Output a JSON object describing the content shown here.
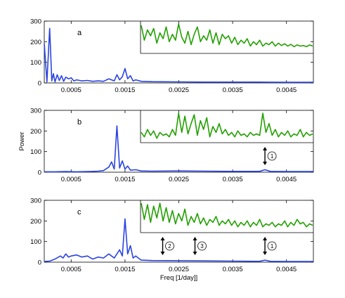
{
  "chart_data": [
    {
      "type": "line",
      "panel_label": "a",
      "xlim": [
        0.0,
        0.005
      ],
      "ylim": [
        0,
        300
      ],
      "xticks": [
        "0.0005",
        "0.0015",
        "0.0025",
        "0.0035",
        "0.0045"
      ],
      "yticks": [
        "0",
        "100",
        "200",
        "300"
      ],
      "xlabel": "",
      "ylabel": "",
      "main_color": "#2a44e0",
      "inset_color": "#22a000",
      "series": [
        {
          "color": "#2a44e0",
          "x": [
            0.0,
            5e-05,
            0.0001,
            0.00014,
            0.00017,
            0.0002,
            0.00024,
            0.00028,
            0.00032,
            0.00036,
            0.0004,
            0.00045,
            0.0005,
            0.00055,
            0.0006,
            0.0007,
            0.0008,
            0.0009,
            0.001,
            0.0011,
            0.0012,
            0.0013,
            0.00135,
            0.0014,
            0.00145,
            0.0015,
            0.00155,
            0.0016,
            0.00165,
            0.0017,
            0.0018,
            0.002,
            0.0025,
            0.003,
            0.0035,
            0.004,
            0.0045,
            0.005
          ],
          "y": [
            190,
            5,
            265,
            10,
            45,
            5,
            40,
            12,
            35,
            8,
            28,
            20,
            25,
            10,
            15,
            10,
            12,
            8,
            10,
            8,
            20,
            10,
            40,
            15,
            30,
            70,
            20,
            35,
            10,
            15,
            8,
            6,
            5,
            4,
            4,
            4,
            3,
            3
          ]
        }
      ],
      "inset": {
        "xlim": [
          0.0017,
          0.005
        ],
        "y": [
          90,
          40,
          75,
          55,
          80,
          30,
          65,
          45,
          85,
          35,
          60,
          40,
          95,
          50,
          30,
          70,
          25,
          60,
          85,
          35,
          55,
          40,
          75,
          30,
          65,
          25,
          60,
          45,
          55,
          30,
          50,
          25,
          40,
          30,
          45,
          20,
          35,
          25,
          40,
          20,
          30,
          25,
          35,
          20,
          30,
          22,
          28,
          20,
          26,
          18,
          24,
          20,
          22,
          18,
          24,
          20
        ]
      },
      "arrows": []
    },
    {
      "type": "line",
      "panel_label": "b",
      "xlim": [
        0.0,
        0.005
      ],
      "ylim": [
        0,
        300
      ],
      "xticks": [
        "0.0005",
        "0.0015",
        "0.0025",
        "0.0035",
        "0.0045"
      ],
      "yticks": [
        "0",
        "100",
        "200",
        "300"
      ],
      "xlabel": "",
      "ylabel": "Power",
      "main_color": "#2a44e0",
      "inset_color": "#22a000",
      "series": [
        {
          "color": "#2a44e0",
          "x": [
            0.0,
            0.0002,
            0.0004,
            0.0006,
            0.0008,
            0.001,
            0.0011,
            0.0012,
            0.00125,
            0.0013,
            0.00135,
            0.0014,
            0.00145,
            0.0015,
            0.00155,
            0.0016,
            0.0017,
            0.0018,
            0.002,
            0.0025,
            0.003,
            0.0035,
            0.004,
            0.0041,
            0.0042,
            0.0045,
            0.005
          ],
          "y": [
            2,
            2,
            3,
            2,
            3,
            5,
            8,
            25,
            50,
            15,
            225,
            20,
            55,
            15,
            30,
            10,
            12,
            6,
            5,
            6,
            5,
            4,
            4,
            12,
            4,
            3,
            3
          ]
        }
      ],
      "inset": {
        "xlim": [
          0.0017,
          0.005
        ],
        "y": [
          30,
          15,
          40,
          20,
          35,
          10,
          30,
          20,
          25,
          15,
          40,
          20,
          95,
          30,
          85,
          25,
          60,
          90,
          20,
          70,
          40,
          80,
          15,
          50,
          30,
          60,
          25,
          40,
          20,
          30,
          15,
          35,
          20,
          25,
          15,
          30,
          20,
          25,
          20,
          95,
          30,
          60,
          20,
          40,
          15,
          30,
          20,
          35,
          15,
          25,
          20,
          40,
          15,
          30,
          20,
          25
        ]
      },
      "arrows": [
        {
          "label": "1",
          "x": 0.0041
        }
      ]
    },
    {
      "type": "line",
      "panel_label": "c",
      "xlim": [
        0.0,
        0.005
      ],
      "ylim": [
        0,
        300
      ],
      "xticks": [
        "0.0005",
        "0.0015",
        "0.0025",
        "0.0035",
        "0.0045"
      ],
      "yticks": [
        "0",
        "100",
        "200",
        "300"
      ],
      "xlabel": "Freq [1/day]]",
      "ylabel": "",
      "main_color": "#2a44e0",
      "inset_color": "#22a000",
      "series": [
        {
          "color": "#2a44e0",
          "x": [
            0.0,
            0.0001,
            0.0002,
            0.0003,
            0.00035,
            0.0004,
            0.00045,
            0.0005,
            0.0006,
            0.0007,
            0.0008,
            0.0009,
            0.001,
            0.0011,
            0.0012,
            0.0013,
            0.0014,
            0.00145,
            0.0015,
            0.00155,
            0.0016,
            0.00165,
            0.0017,
            0.0018,
            0.002,
            0.0025,
            0.003,
            0.0035,
            0.004,
            0.0041,
            0.0042,
            0.0045,
            0.005
          ],
          "y": [
            3,
            5,
            15,
            30,
            20,
            40,
            25,
            30,
            35,
            25,
            30,
            15,
            25,
            20,
            40,
            20,
            60,
            30,
            210,
            40,
            80,
            20,
            30,
            10,
            8,
            7,
            6,
            5,
            4,
            10,
            4,
            3,
            3
          ]
        }
      ],
      "inset": {
        "xlim": [
          0.0017,
          0.005
        ],
        "y": [
          95,
          40,
          90,
          30,
          85,
          45,
          95,
          35,
          80,
          30,
          70,
          25,
          60,
          35,
          75,
          20,
          50,
          30,
          60,
          25,
          45,
          20,
          40,
          30,
          50,
          20,
          35,
          25,
          40,
          20,
          35,
          15,
          30,
          20,
          35,
          15,
          30,
          20,
          40,
          15,
          25,
          20,
          30,
          15,
          25,
          20,
          35,
          15,
          30,
          20,
          40,
          25,
          30,
          15,
          25,
          20
        ]
      },
      "arrows": [
        {
          "label": "2",
          "x": 0.0022
        },
        {
          "label": "3",
          "x": 0.0028
        },
        {
          "label": "1",
          "x": 0.0041
        }
      ]
    }
  ]
}
